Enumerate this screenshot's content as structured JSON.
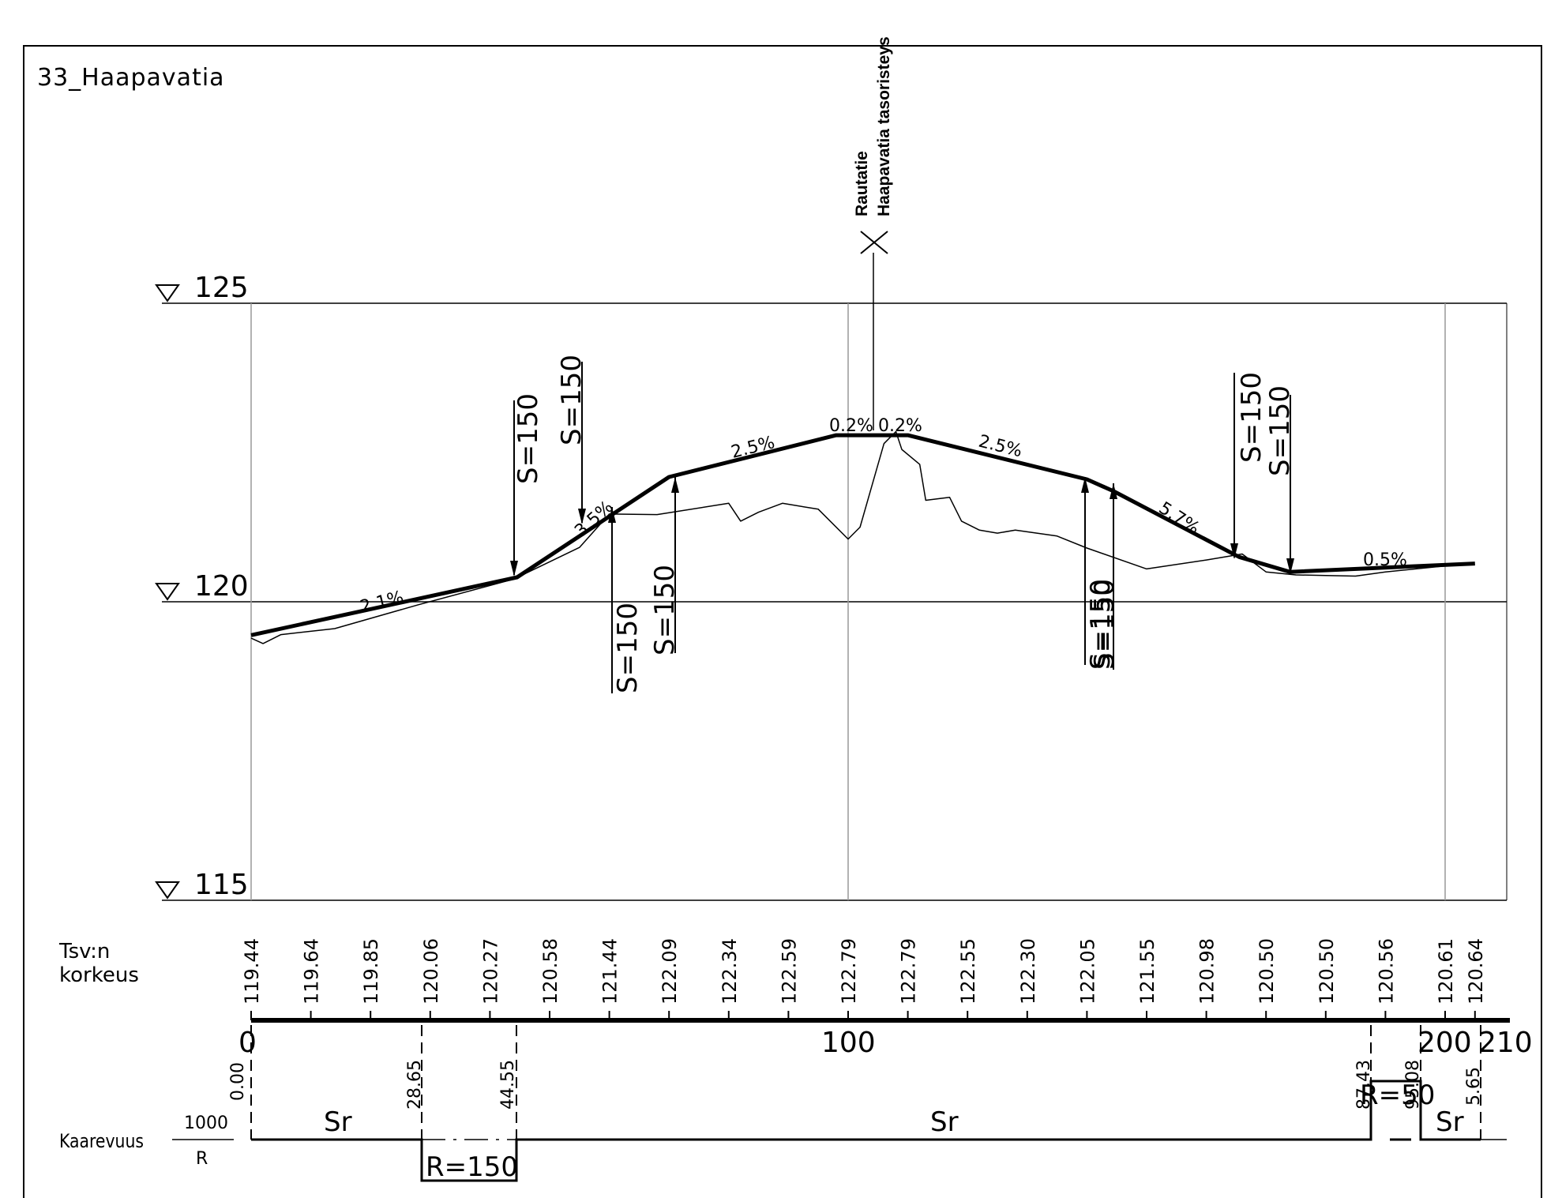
{
  "title": "33_Haapavatia",
  "crossing": {
    "label_1": "Rautatie",
    "label_2": "Haapavatia tasoristeys"
  },
  "elevation_axis": {
    "labels": [
      "125",
      "120",
      "115"
    ]
  },
  "slopes": [
    "2.1%",
    "3.5%",
    "2.5%",
    "0.2%",
    "0.2%",
    "2.5%",
    "5.7%",
    "0.5%"
  ],
  "curves": [
    "S=150",
    "S=150",
    "S=150",
    "S=150",
    "S=150",
    "S=150",
    "S=150",
    "S=150"
  ],
  "table": {
    "height_label_1": "Tsv:n",
    "height_label_2": "korkeus",
    "heights": [
      "119.44",
      "119.64",
      "119.85",
      "120.06",
      "120.27",
      "120.58",
      "121.44",
      "122.09",
      "122.34",
      "122.59",
      "122.79",
      "122.79",
      "122.55",
      "122.30",
      "122.05",
      "121.55",
      "120.98",
      "120.50",
      "120.50",
      "120.56",
      "120.61",
      "120.64"
    ],
    "station_labels": [
      "0",
      "100",
      "200",
      "210"
    ],
    "curvature_label": "Kaarevuus",
    "curvature_num": "1000",
    "curvature_den": "R",
    "curvature_stations": [
      "0.00",
      "28.65",
      "44.55",
      "87.43",
      "95.08",
      "5.65"
    ],
    "curvature_segments": [
      "Sr",
      "R=150",
      "Sr",
      "R=50",
      "Sr"
    ]
  },
  "chart_data": {
    "type": "line",
    "x_unit": "m (paalu)",
    "y_unit": "m (korkeus)",
    "xlim": [
      0,
      210
    ],
    "ylim": [
      115,
      125
    ],
    "grid": true,
    "series": [
      {
        "x": [
          0,
          44.55,
          70,
          98,
          110,
          140,
          144.5,
          165.5,
          174,
          205
        ],
        "y": [
          119.44,
          120.41,
          122.09,
          122.79,
          122.79,
          122.05,
          121.85,
          120.75,
          120.5,
          120.64
        ]
      },
      {
        "x": [
          0,
          2,
          5,
          14,
          28,
          44,
          55,
          60,
          68,
          80,
          82,
          85,
          89,
          95,
          100,
          102,
          106,
          108,
          109,
          112,
          113,
          117,
          119,
          122,
          125,
          128,
          135,
          140,
          150,
          160,
          166,
          170,
          175,
          180,
          185,
          190,
          200
        ],
        "y": [
          119.39,
          119.3,
          119.45,
          119.55,
          119.95,
          120.38,
          120.91,
          121.47,
          121.46,
          121.65,
          121.35,
          121.5,
          121.65,
          121.55,
          121.05,
          121.25,
          122.65,
          122.85,
          122.55,
          122.3,
          121.7,
          121.75,
          121.35,
          121.2,
          121.15,
          121.2,
          121.1,
          120.9,
          120.55,
          120.7,
          120.8,
          120.5,
          120.45,
          120.44,
          120.43,
          120.5,
          120.6
        ]
      }
    ]
  }
}
